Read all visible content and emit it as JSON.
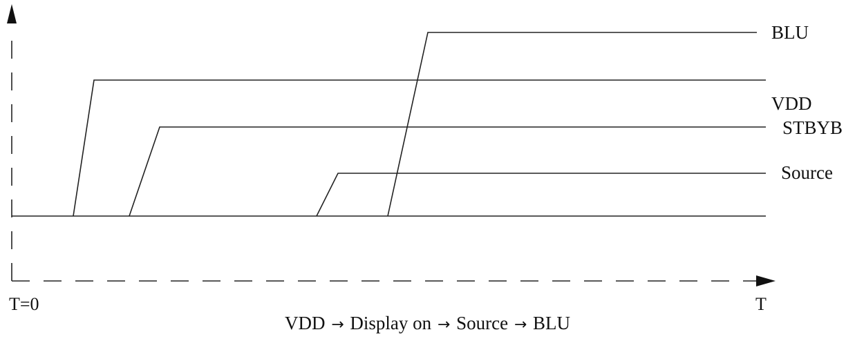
{
  "signals": [
    {
      "id": "blu",
      "label": "BLU"
    },
    {
      "id": "vdd",
      "label": "VDD"
    },
    {
      "id": "stbyb",
      "label": "STBYB"
    },
    {
      "id": "source",
      "label": "Source"
    }
  ],
  "axes": {
    "origin_label": "T=0",
    "time_label": "T"
  },
  "caption": {
    "step1": "VDD",
    "step2": "Display on",
    "step3": "Source",
    "step4": "BLU",
    "arrow": "→"
  }
}
